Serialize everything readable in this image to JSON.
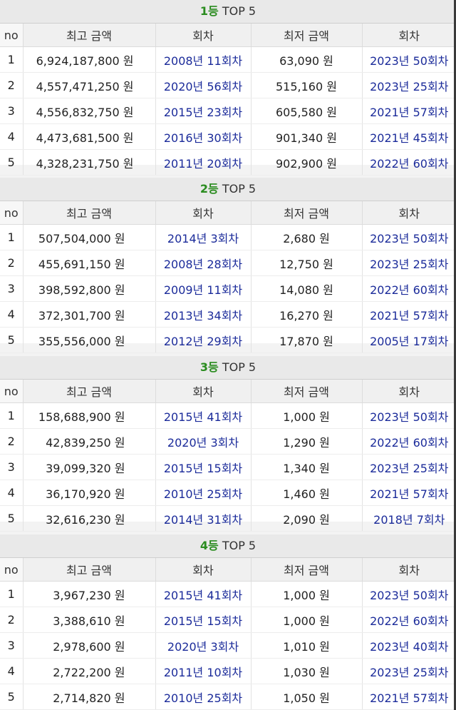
{
  "table_headers": {
    "no": "no",
    "max_amount": "최고 금액",
    "max_round": "회차",
    "min_amount": "최저 금액",
    "min_round": "회차"
  },
  "sections": [
    {
      "rank": "1등",
      "suffix": "TOP 5",
      "rows": [
        {
          "no": "1",
          "max_amount": "6,924,187,800 원",
          "max_round": "2008년 11회차",
          "min_amount": "63,090 원",
          "min_round": "2023년 50회차"
        },
        {
          "no": "2",
          "max_amount": "4,557,471,250 원",
          "max_round": "2020년 56회차",
          "min_amount": "515,160 원",
          "min_round": "2023년 25회차"
        },
        {
          "no": "3",
          "max_amount": "4,556,832,750 원",
          "max_round": "2015년 23회차",
          "min_amount": "605,580 원",
          "min_round": "2021년 57회차"
        },
        {
          "no": "4",
          "max_amount": "4,473,681,500 원",
          "max_round": "2016년 30회차",
          "min_amount": "901,340 원",
          "min_round": "2021년 45회차"
        },
        {
          "no": "5",
          "max_amount": "4,328,231,750 원",
          "max_round": "2011년 20회차",
          "min_amount": "902,900 원",
          "min_round": "2022년 60회차"
        }
      ]
    },
    {
      "rank": "2등",
      "suffix": "TOP 5",
      "rows": [
        {
          "no": "1",
          "max_amount": "507,504,000 원",
          "max_round": "2014년 3회차",
          "min_amount": "2,680 원",
          "min_round": "2023년 50회차"
        },
        {
          "no": "2",
          "max_amount": "455,691,150 원",
          "max_round": "2008년 28회차",
          "min_amount": "12,750 원",
          "min_round": "2023년 25회차"
        },
        {
          "no": "3",
          "max_amount": "398,592,800 원",
          "max_round": "2009년 11회차",
          "min_amount": "14,080 원",
          "min_round": "2022년 60회차"
        },
        {
          "no": "4",
          "max_amount": "372,301,700 원",
          "max_round": "2013년 34회차",
          "min_amount": "16,270 원",
          "min_round": "2021년 57회차"
        },
        {
          "no": "5",
          "max_amount": "355,556,000 원",
          "max_round": "2012년 29회차",
          "min_amount": "17,870 원",
          "min_round": "2005년 17회차"
        }
      ]
    },
    {
      "rank": "3등",
      "suffix": "TOP 5",
      "rows": [
        {
          "no": "1",
          "max_amount": "158,688,900 원",
          "max_round": "2015년 41회차",
          "min_amount": "1,000 원",
          "min_round": "2023년 50회차"
        },
        {
          "no": "2",
          "max_amount": "42,839,250 원",
          "max_round": "2020년 3회차",
          "min_amount": "1,290 원",
          "min_round": "2022년 60회차"
        },
        {
          "no": "3",
          "max_amount": "39,099,320 원",
          "max_round": "2015년 15회차",
          "min_amount": "1,340 원",
          "min_round": "2023년 25회차"
        },
        {
          "no": "4",
          "max_amount": "36,170,920 원",
          "max_round": "2010년 25회차",
          "min_amount": "1,460 원",
          "min_round": "2021년 57회차"
        },
        {
          "no": "5",
          "max_amount": "32,616,230 원",
          "max_round": "2014년 31회차",
          "min_amount": "2,090 원",
          "min_round": "2018년 7회차"
        }
      ]
    },
    {
      "rank": "4등",
      "suffix": "TOP 5",
      "rows": [
        {
          "no": "1",
          "max_amount": "3,967,230 원",
          "max_round": "2015년 41회차",
          "min_amount": "1,000 원",
          "min_round": "2023년 50회차"
        },
        {
          "no": "2",
          "max_amount": "3,388,610 원",
          "max_round": "2015년 15회차",
          "min_amount": "1,000 원",
          "min_round": "2022년 60회차"
        },
        {
          "no": "3",
          "max_amount": "2,978,600 원",
          "max_round": "2020년 3회차",
          "min_amount": "1,010 원",
          "min_round": "2023년 40회차"
        },
        {
          "no": "4",
          "max_amount": "2,722,200 원",
          "max_round": "2011년 10회차",
          "min_amount": "1,030 원",
          "min_round": "2023년 25회차"
        },
        {
          "no": "5",
          "max_amount": "2,714,820 원",
          "max_round": "2010년 25회차",
          "min_amount": "1,050 원",
          "min_round": "2021년 57회차"
        }
      ]
    }
  ]
}
